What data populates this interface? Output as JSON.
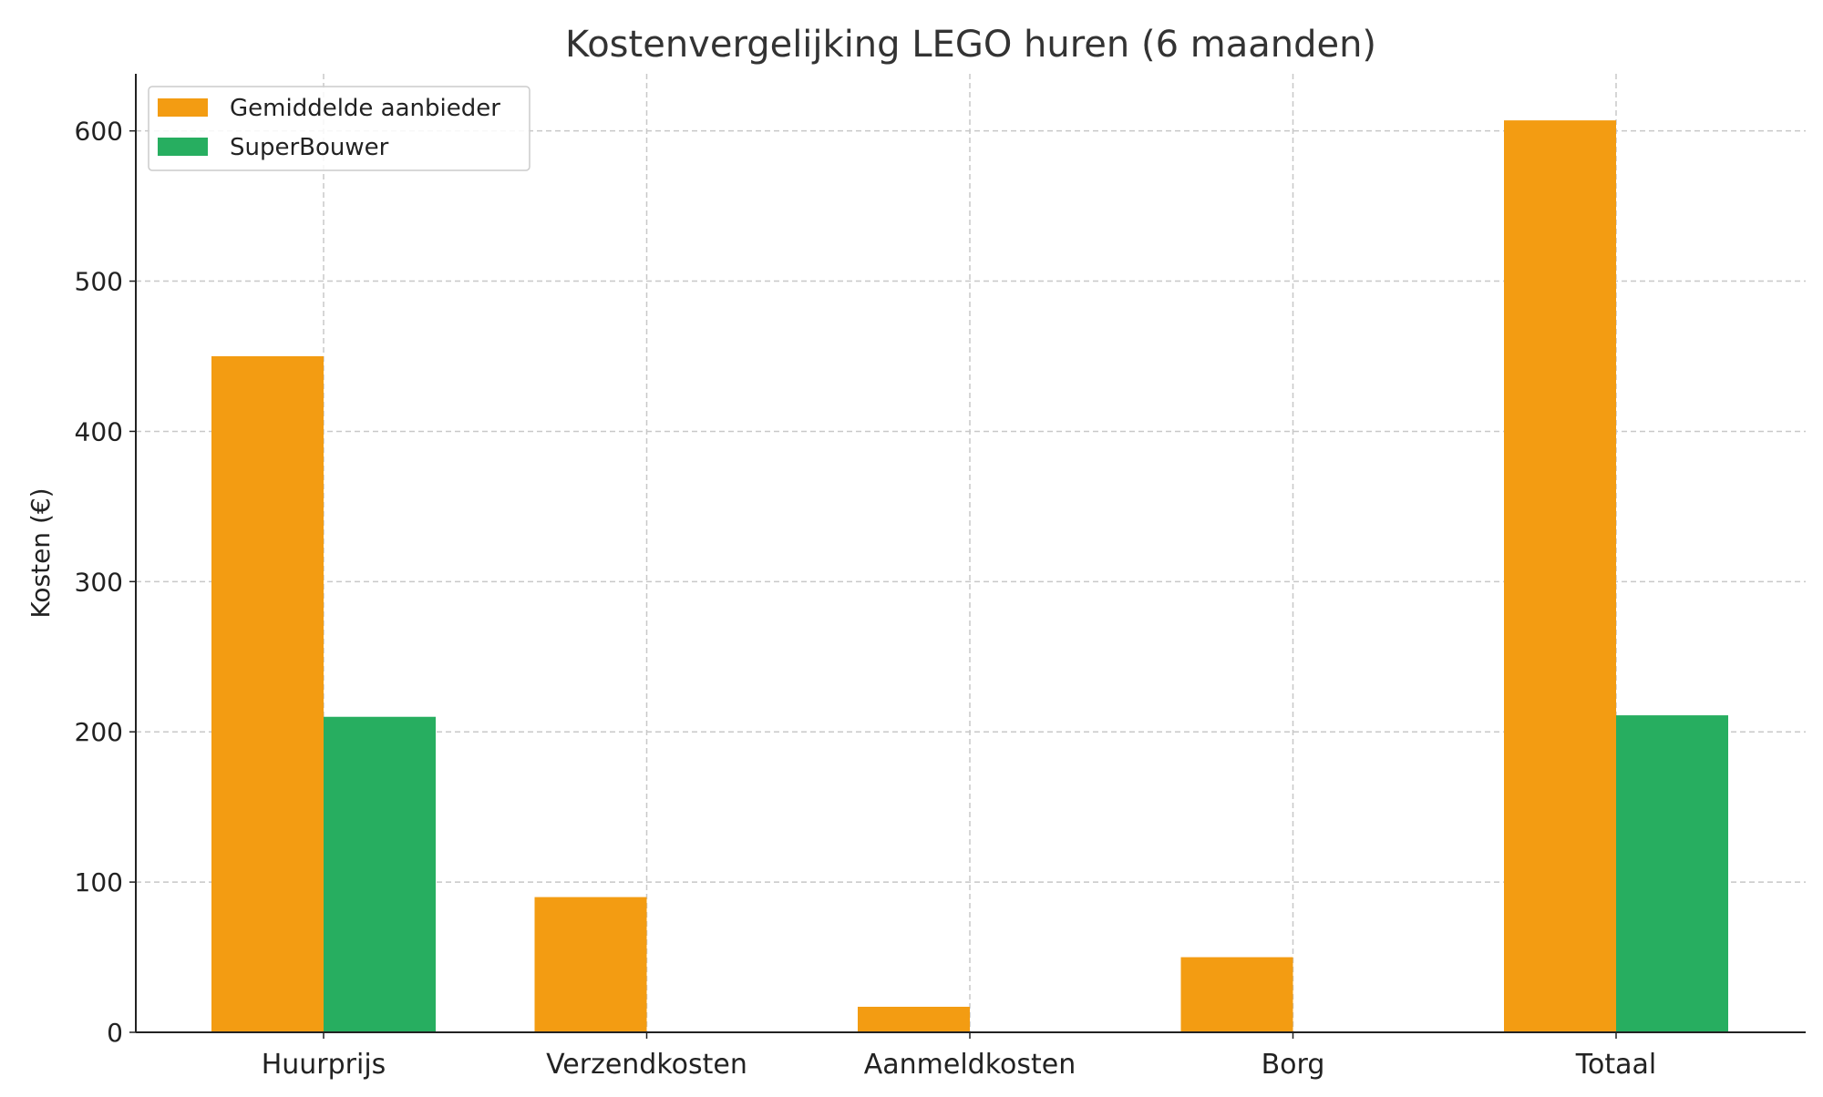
{
  "chart_data": {
    "type": "bar",
    "title": "Kostenvergelijking LEGO huren (6 maanden)",
    "xlabel": "",
    "ylabel": "Kosten (€)",
    "categories": [
      "Huurprijs",
      "Verzendkosten",
      "Aanmeldkosten",
      "Borg",
      "Totaal"
    ],
    "series": [
      {
        "name": "Gemiddelde aanbieder",
        "color": "#F39C12",
        "values": [
          450,
          90,
          17,
          50,
          607
        ]
      },
      {
        "name": "SuperBouwer",
        "color": "#27AE60",
        "values": [
          210,
          0,
          0,
          0,
          211
        ]
      }
    ],
    "ylim": [
      0,
      638
    ],
    "yticks": [
      0,
      100,
      200,
      300,
      400,
      500,
      600
    ],
    "grid": true,
    "legend_position": "top-left"
  }
}
